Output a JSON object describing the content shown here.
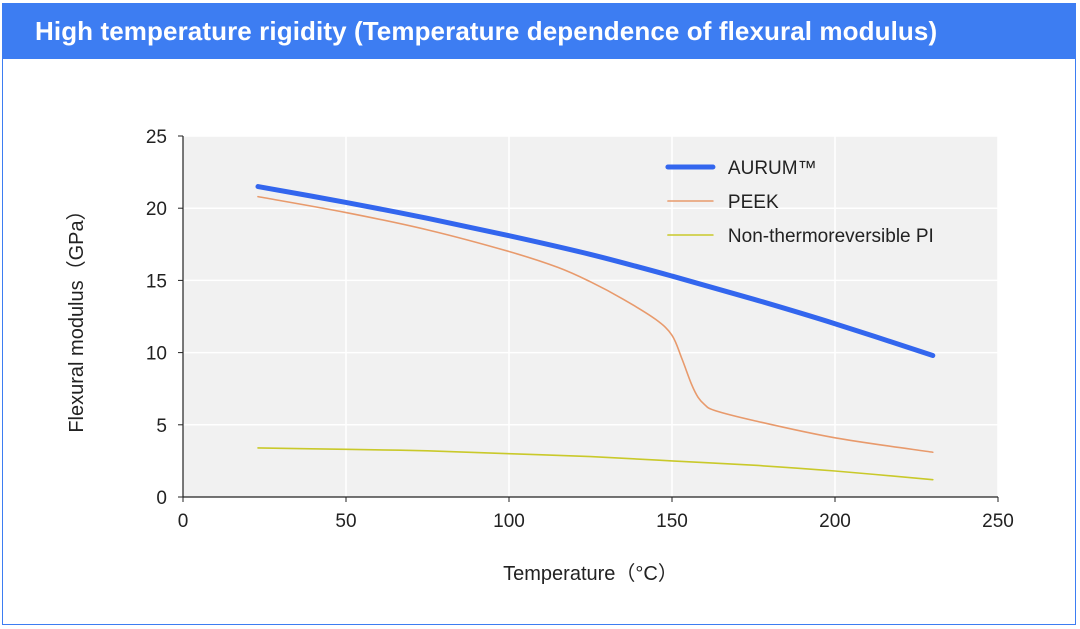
{
  "header": {
    "title": "High temperature rigidity (Temperature dependence of flexural modulus)",
    "background_color": "#3d7df2"
  },
  "chart_data": {
    "type": "line",
    "title": "High temperature rigidity (Temperature dependence of flexural modulus)",
    "xlabel": "Temperature（°C）",
    "ylabel": "Flexural modulus（GPa）",
    "xlim": [
      0,
      250
    ],
    "ylim": [
      0,
      25
    ],
    "xticks": [
      0,
      50,
      100,
      150,
      200,
      250
    ],
    "yticks": [
      0,
      5,
      10,
      15,
      20,
      25
    ],
    "xtick_labels": [
      "0",
      "50",
      "100",
      "150",
      "200",
      "250"
    ],
    "ytick_labels": [
      "0",
      "5",
      "10",
      "15",
      "20",
      "25"
    ],
    "grid": true,
    "legend_position": "top-right",
    "series": [
      {
        "name": "AURUM™",
        "color": "#3366ee",
        "emphasis": "thick",
        "x": [
          23,
          50,
          75,
          100,
          125,
          150,
          175,
          200,
          230
        ],
        "y": [
          21.5,
          20.4,
          19.3,
          18.1,
          16.8,
          15.3,
          13.7,
          12.0,
          9.8
        ]
      },
      {
        "name": "PEEK",
        "color": "#e89a6c",
        "emphasis": "thin",
        "x": [
          23,
          50,
          75,
          100,
          115,
          125,
          135,
          145,
          150,
          153,
          156,
          158,
          160,
          163,
          175,
          200,
          230
        ],
        "y": [
          20.8,
          19.7,
          18.5,
          17.0,
          15.9,
          14.9,
          13.7,
          12.3,
          11.2,
          9.6,
          7.8,
          6.9,
          6.4,
          6.0,
          5.3,
          4.1,
          3.1
        ]
      },
      {
        "name": "Non-thermoreversible PI",
        "color": "#c9c92a",
        "emphasis": "thin",
        "x": [
          23,
          50,
          75,
          100,
          125,
          150,
          175,
          200,
          230
        ],
        "y": [
          3.4,
          3.3,
          3.2,
          3.0,
          2.8,
          2.5,
          2.2,
          1.8,
          1.2
        ]
      }
    ]
  }
}
